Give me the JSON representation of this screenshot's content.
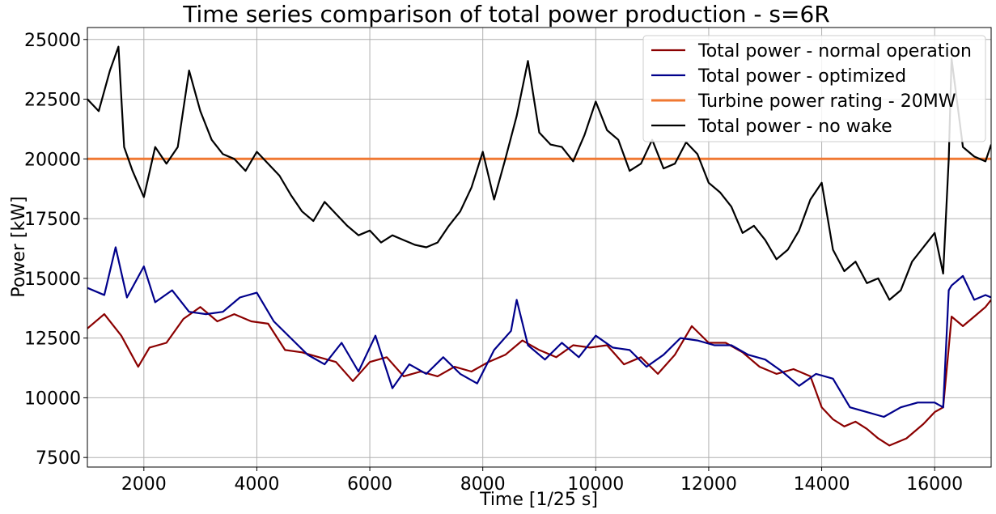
{
  "chart_data": {
    "type": "line",
    "title": "Time series comparison of total power production - s=6R",
    "xlabel": "Time [1/25 s]",
    "ylabel": "Power [kW]",
    "xlim": [
      1000,
      17000
    ],
    "ylim": [
      7100,
      25500
    ],
    "xticks": [
      2000,
      4000,
      6000,
      8000,
      10000,
      12000,
      14000,
      16000
    ],
    "yticks": [
      7500,
      10000,
      12500,
      15000,
      17500,
      20000,
      22500,
      25000
    ],
    "grid": true,
    "legend_position": "top-right",
    "series": [
      {
        "name": "Total power - normal operation",
        "color": "#8b0000",
        "x": [
          1000,
          1300,
          1600,
          1900,
          2100,
          2400,
          2700,
          3000,
          3300,
          3600,
          3900,
          4200,
          4500,
          4800,
          5100,
          5400,
          5700,
          6000,
          6300,
          6600,
          6900,
          7200,
          7500,
          7800,
          8100,
          8400,
          8700,
          9000,
          9300,
          9600,
          9900,
          10200,
          10500,
          10800,
          11100,
          11400,
          11700,
          12000,
          12300,
          12600,
          12900,
          13200,
          13500,
          13800,
          14000,
          14200,
          14400,
          14600,
          14800,
          15000,
          15200,
          15500,
          15800,
          16000,
          16150,
          16250,
          16300,
          16500,
          16700,
          16900,
          17000
        ],
        "values": [
          12900,
          13500,
          12600,
          11300,
          12100,
          12300,
          13300,
          13800,
          13200,
          13500,
          13200,
          13100,
          12000,
          11900,
          11700,
          11500,
          10700,
          11500,
          11700,
          10900,
          11100,
          10900,
          11300,
          11100,
          11500,
          11800,
          12400,
          12000,
          11700,
          12200,
          12100,
          12200,
          11400,
          11700,
          11000,
          11800,
          13000,
          12300,
          12300,
          11900,
          11300,
          11000,
          11200,
          10900,
          9600,
          9100,
          8800,
          9000,
          8700,
          8300,
          8000,
          8300,
          8900,
          9400,
          9600,
          12100,
          13400,
          13000,
          13400,
          13800,
          14100
        ]
      },
      {
        "name": "Total power - optimized",
        "color": "#00008b",
        "x": [
          1000,
          1300,
          1500,
          1700,
          2000,
          2200,
          2500,
          2800,
          3100,
          3400,
          3700,
          4000,
          4300,
          4600,
          4900,
          5200,
          5500,
          5800,
          6100,
          6400,
          6700,
          7000,
          7300,
          7600,
          7900,
          8200,
          8500,
          8600,
          8800,
          9100,
          9400,
          9700,
          10000,
          10300,
          10600,
          10900,
          11200,
          11500,
          11800,
          12100,
          12400,
          12700,
          13000,
          13300,
          13600,
          13900,
          14200,
          14500,
          14800,
          15100,
          15400,
          15700,
          16000,
          16150,
          16250,
          16300,
          16500,
          16700,
          16900,
          17000
        ],
        "values": [
          14600,
          14300,
          16300,
          14200,
          15500,
          14000,
          14500,
          13600,
          13500,
          13600,
          14200,
          14400,
          13200,
          12500,
          11800,
          11400,
          12300,
          11100,
          12600,
          10400,
          11400,
          11000,
          11700,
          11000,
          10600,
          12000,
          12800,
          14100,
          12200,
          11600,
          12300,
          11700,
          12600,
          12100,
          12000,
          11300,
          11800,
          12500,
          12400,
          12200,
          12200,
          11800,
          11600,
          11100,
          10500,
          11000,
          10800,
          9600,
          9400,
          9200,
          9600,
          9800,
          9800,
          9600,
          14500,
          14700,
          15100,
          14100,
          14300,
          14200
        ]
      },
      {
        "name": "Turbine power rating - 20MW",
        "color": "#f07832",
        "x": [
          1000,
          17000
        ],
        "values": [
          20000,
          20000
        ]
      },
      {
        "name": "Total power - no wake",
        "color": "#000000",
        "x": [
          1000,
          1200,
          1400,
          1550,
          1650,
          1800,
          2000,
          2200,
          2400,
          2600,
          2800,
          3000,
          3200,
          3400,
          3600,
          3800,
          4000,
          4200,
          4400,
          4600,
          4800,
          5000,
          5200,
          5400,
          5600,
          5800,
          6000,
          6200,
          6400,
          6600,
          6800,
          7000,
          7200,
          7400,
          7600,
          7800,
          8000,
          8200,
          8400,
          8600,
          8800,
          9000,
          9200,
          9400,
          9600,
          9800,
          10000,
          10200,
          10400,
          10600,
          10800,
          11000,
          11200,
          11400,
          11600,
          11800,
          12000,
          12200,
          12400,
          12600,
          12800,
          13000,
          13200,
          13400,
          13600,
          13800,
          14000,
          14200,
          14400,
          14600,
          14800,
          15000,
          15200,
          15400,
          15600,
          15800,
          16000,
          16150,
          16250,
          16300,
          16500,
          16700,
          16900,
          17000
        ],
        "values": [
          22500,
          22000,
          23700,
          24700,
          20500,
          19500,
          18400,
          20500,
          19800,
          20500,
          23700,
          22000,
          20800,
          20200,
          20000,
          19500,
          20300,
          19800,
          19300,
          18500,
          17800,
          17400,
          18200,
          17700,
          17200,
          16800,
          17000,
          16500,
          16800,
          16600,
          16400,
          16300,
          16500,
          17200,
          17800,
          18800,
          20300,
          18300,
          20000,
          21800,
          24100,
          21100,
          20600,
          20500,
          19900,
          21000,
          22400,
          21200,
          20800,
          19500,
          19800,
          20800,
          19600,
          19800,
          20700,
          20200,
          19000,
          18600,
          18000,
          16900,
          17200,
          16600,
          15800,
          16200,
          17000,
          18300,
          19000,
          16200,
          15300,
          15700,
          14800,
          15000,
          14100,
          14500,
          15700,
          16300,
          16900,
          15200,
          20000,
          24200,
          20500,
          20100,
          19900,
          20600
        ]
      }
    ]
  }
}
